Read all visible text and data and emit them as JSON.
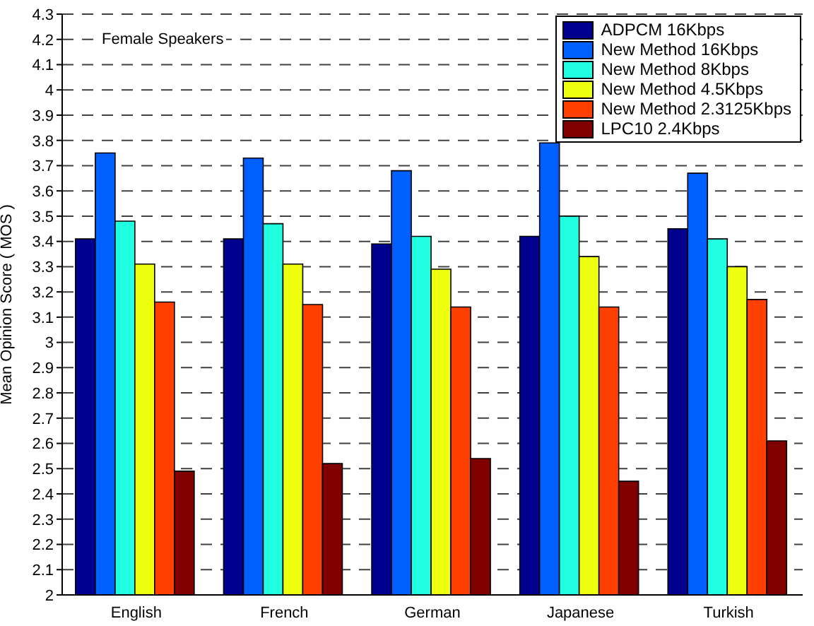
{
  "chart_data": {
    "type": "bar",
    "ylabel": "Mean Opinion Score ( MOS )",
    "annotations": [
      "Female Speakers"
    ],
    "categories": [
      "English",
      "French",
      "German",
      "Japanese",
      "Turkish"
    ],
    "series": [
      {
        "name": "ADPCM 16Kbps",
        "color": "#00008f",
        "values": [
          3.41,
          3.41,
          3.39,
          3.42,
          3.45
        ]
      },
      {
        "name": "New Method 16Kbps",
        "color": "#0060ff",
        "values": [
          3.75,
          3.73,
          3.68,
          3.79,
          3.67
        ]
      },
      {
        "name": "New Method 8Kbps",
        "color": "#20ffdf",
        "values": [
          3.48,
          3.47,
          3.42,
          3.5,
          3.41
        ]
      },
      {
        "name": "New Method 4.5Kbps",
        "color": "#efff10",
        "values": [
          3.31,
          3.31,
          3.29,
          3.34,
          3.3
        ]
      },
      {
        "name": "New Method 2.3125Kbps",
        "color": "#ff4000",
        "values": [
          3.16,
          3.15,
          3.14,
          3.14,
          3.17
        ]
      },
      {
        "name": "LPC10 2.4Kbps",
        "color": "#800000",
        "values": [
          2.49,
          2.52,
          2.54,
          2.45,
          2.61
        ]
      }
    ],
    "ylim": [
      2,
      4.3
    ],
    "yticks": [
      2,
      2.1,
      2.2,
      2.3,
      2.4,
      2.5,
      2.6,
      2.7,
      2.8,
      2.9,
      3,
      3.1,
      3.2,
      3.3,
      3.4,
      3.5,
      3.6,
      3.7,
      3.8,
      3.9,
      4,
      4.1,
      4.2,
      4.3
    ],
    "grid": "y",
    "legend": "top right"
  }
}
